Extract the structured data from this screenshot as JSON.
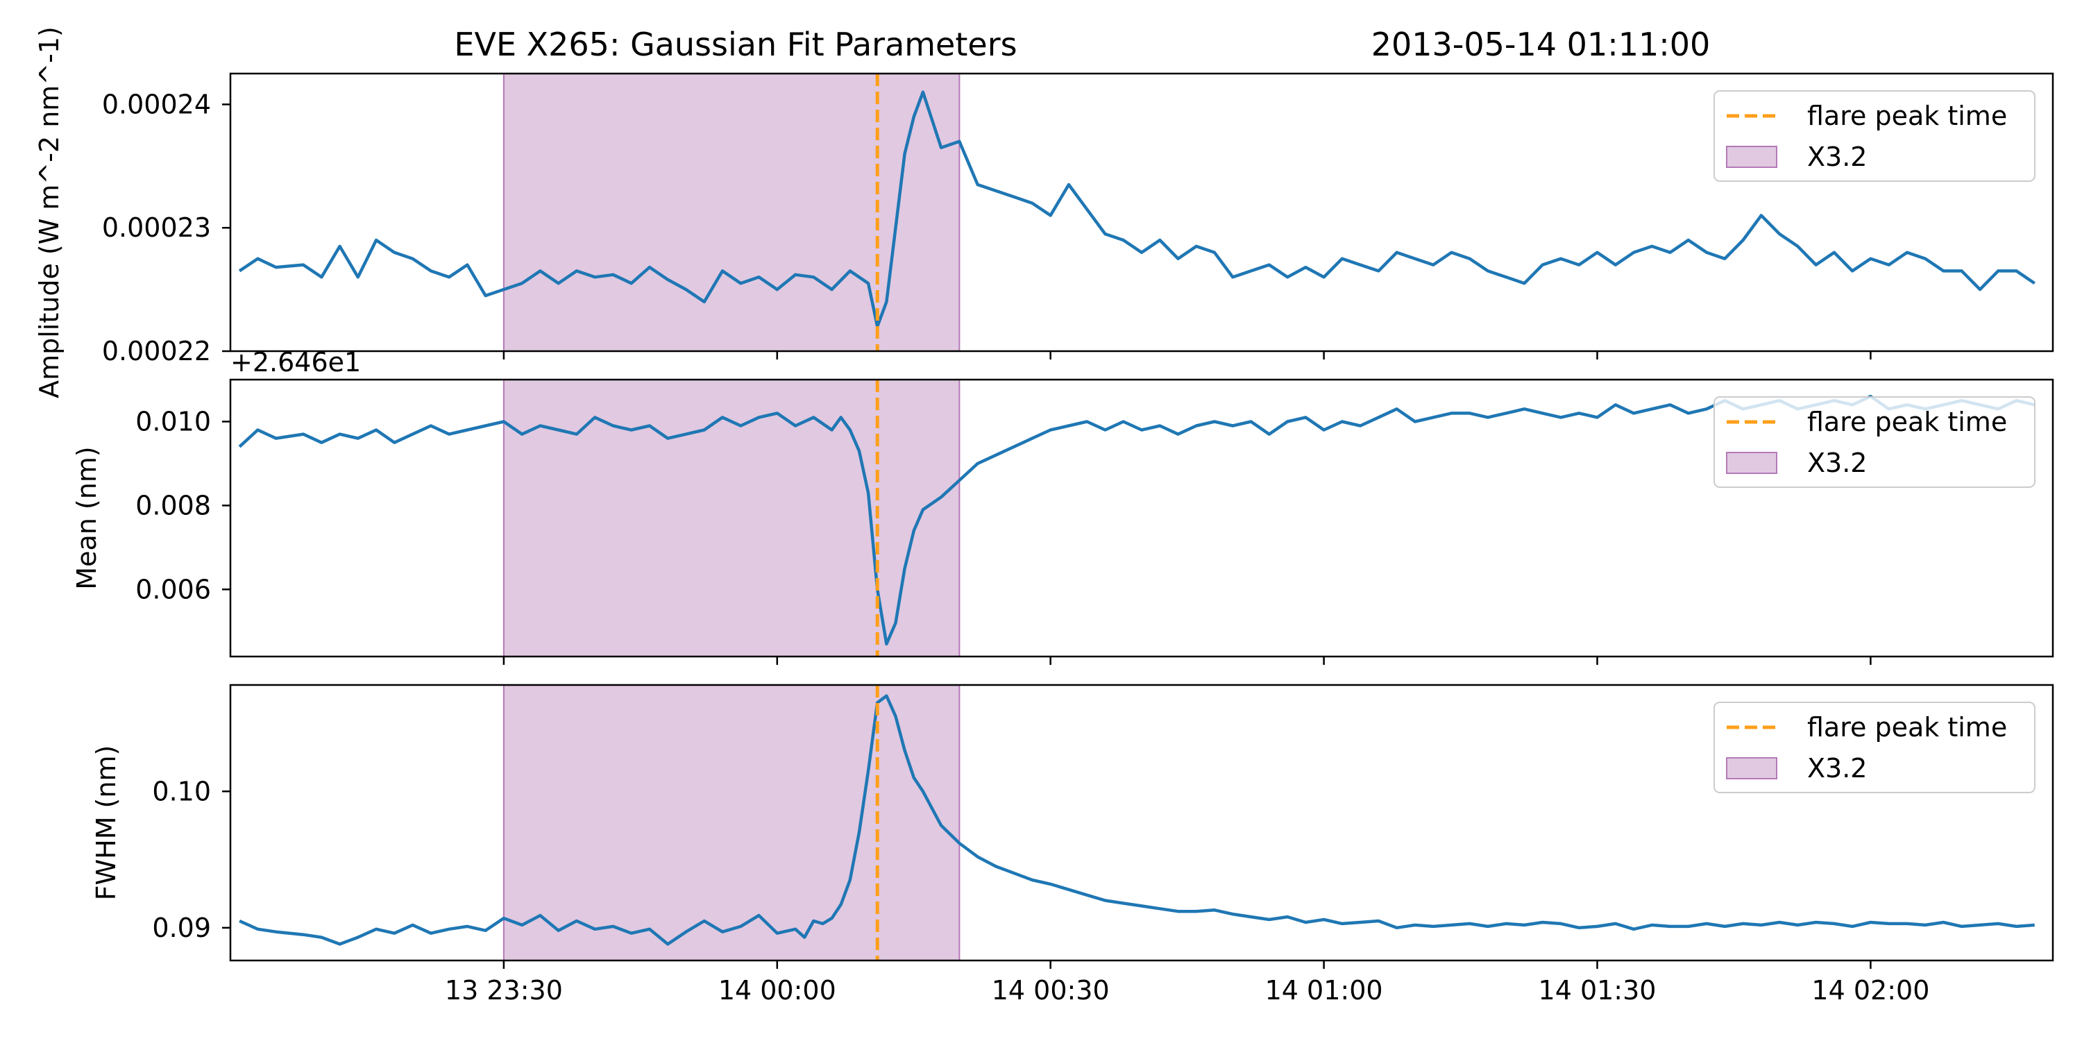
{
  "title": "EVE X265: Gaussian Fit Parameters",
  "subtitle": "2013-05-14 01:11:00",
  "legend": {
    "peak_label": "flare peak time",
    "span_label": "X3.2"
  },
  "colors": {
    "line": "#1f77b4",
    "peak": "#ff9f1a",
    "span_fill": "#c79cc9",
    "span_edge": "#b579b8"
  },
  "x_ticks": [
    "13 23:30",
    "14 00:00",
    "14 00:30",
    "14 01:00",
    "14 01:30",
    "14 02:00"
  ],
  "chart_data": [
    {
      "type": "line",
      "ylabel": "Amplitude (W m^-2 nm^-1)",
      "x_unit": "minutes since 2013-05-13 23:00",
      "xlim": [
        0,
        200
      ],
      "ylim": [
        0.00022,
        0.0002425
      ],
      "yticks": [
        0.00022,
        0.00023,
        0.00024
      ],
      "ytick_labels": [
        "0.00022",
        "0.00023",
        "0.00024"
      ],
      "peak_x": 71,
      "span": [
        30,
        80
      ],
      "x": [
        1,
        3,
        5,
        8,
        10,
        12,
        14,
        16,
        18,
        20,
        22,
        24,
        26,
        28,
        30,
        32,
        34,
        36,
        38,
        40,
        42,
        44,
        46,
        48,
        50,
        52,
        54,
        56,
        58,
        60,
        62,
        64,
        66,
        68,
        70,
        71,
        72,
        74,
        75,
        76,
        78,
        80,
        82,
        84,
        86,
        88,
        90,
        92,
        94,
        96,
        98,
        100,
        102,
        104,
        106,
        108,
        110,
        112,
        114,
        116,
        118,
        120,
        122,
        124,
        126,
        128,
        130,
        132,
        134,
        136,
        138,
        140,
        142,
        144,
        146,
        148,
        150,
        152,
        154,
        156,
        158,
        160,
        162,
        164,
        166,
        168,
        170,
        172,
        174,
        176,
        178,
        180,
        182,
        184,
        186,
        188,
        190,
        192,
        194,
        196,
        198
      ],
      "y": [
        0.0002265,
        0.0002275,
        0.0002268,
        0.000227,
        0.000226,
        0.0002285,
        0.000226,
        0.000229,
        0.000228,
        0.0002275,
        0.0002265,
        0.000226,
        0.000227,
        0.0002245,
        0.000225,
        0.0002255,
        0.0002265,
        0.0002255,
        0.0002265,
        0.000226,
        0.0002262,
        0.0002255,
        0.0002268,
        0.0002258,
        0.000225,
        0.000224,
        0.0002265,
        0.0002255,
        0.000226,
        0.000225,
        0.0002262,
        0.000226,
        0.000225,
        0.0002265,
        0.0002255,
        0.000222,
        0.000224,
        0.000236,
        0.000239,
        0.000241,
        0.0002365,
        0.000237,
        0.0002335,
        0.000233,
        0.0002325,
        0.000232,
        0.000231,
        0.0002335,
        0.0002315,
        0.0002295,
        0.000229,
        0.000228,
        0.000229,
        0.0002275,
        0.0002285,
        0.000228,
        0.000226,
        0.0002265,
        0.000227,
        0.000226,
        0.0002268,
        0.000226,
        0.0002275,
        0.000227,
        0.0002265,
        0.000228,
        0.0002275,
        0.000227,
        0.000228,
        0.0002275,
        0.0002265,
        0.000226,
        0.0002255,
        0.000227,
        0.0002275,
        0.000227,
        0.000228,
        0.000227,
        0.000228,
        0.0002285,
        0.000228,
        0.000229,
        0.000228,
        0.0002275,
        0.000229,
        0.000231,
        0.0002295,
        0.0002285,
        0.000227,
        0.000228,
        0.0002265,
        0.0002275,
        0.000227,
        0.000228,
        0.0002275,
        0.0002265,
        0.0002265,
        0.000225,
        0.0002265,
        0.0002265,
        0.0002255
      ]
    },
    {
      "type": "line",
      "ylabel": "Mean (nm)",
      "offset_label": "+2.646e1",
      "x_unit": "minutes since 2013-05-13 23:00",
      "xlim": [
        0,
        200
      ],
      "ylim": [
        0.0044,
        0.011
      ],
      "yticks": [
        0.006,
        0.008,
        0.01
      ],
      "ytick_labels": [
        "0.006",
        "0.008",
        "0.010"
      ],
      "peak_x": 71,
      "span": [
        30,
        80
      ],
      "x": [
        1,
        3,
        5,
        8,
        10,
        12,
        14,
        16,
        18,
        20,
        22,
        24,
        26,
        28,
        30,
        32,
        34,
        36,
        38,
        40,
        42,
        44,
        46,
        48,
        50,
        52,
        54,
        56,
        58,
        60,
        62,
        64,
        66,
        67,
        68,
        69,
        70,
        71,
        72,
        73,
        74,
        75,
        76,
        78,
        80,
        82,
        84,
        86,
        88,
        90,
        92,
        94,
        96,
        98,
        100,
        102,
        104,
        106,
        108,
        110,
        112,
        114,
        116,
        118,
        120,
        122,
        124,
        126,
        128,
        130,
        132,
        134,
        136,
        138,
        140,
        142,
        144,
        146,
        148,
        150,
        152,
        154,
        156,
        158,
        160,
        162,
        164,
        166,
        168,
        170,
        172,
        174,
        176,
        178,
        180,
        182,
        184,
        186,
        188,
        190,
        192,
        194,
        196,
        198
      ],
      "y": [
        0.0094,
        0.0098,
        0.0096,
        0.0097,
        0.0095,
        0.0097,
        0.0096,
        0.0098,
        0.0095,
        0.0097,
        0.0099,
        0.0097,
        0.0098,
        0.0099,
        0.01,
        0.0097,
        0.0099,
        0.0098,
        0.0097,
        0.0101,
        0.0099,
        0.0098,
        0.0099,
        0.0096,
        0.0097,
        0.0098,
        0.0101,
        0.0099,
        0.0101,
        0.0102,
        0.0099,
        0.0101,
        0.0098,
        0.0101,
        0.0098,
        0.0093,
        0.0083,
        0.006,
        0.0047,
        0.0052,
        0.0065,
        0.0074,
        0.0079,
        0.0082,
        0.0086,
        0.009,
        0.0092,
        0.0094,
        0.0096,
        0.0098,
        0.0099,
        0.01,
        0.0098,
        0.01,
        0.0098,
        0.0099,
        0.0097,
        0.0099,
        0.01,
        0.0099,
        0.01,
        0.0097,
        0.01,
        0.0101,
        0.0098,
        0.01,
        0.0099,
        0.0101,
        0.0103,
        0.01,
        0.0101,
        0.0102,
        0.0102,
        0.0101,
        0.0102,
        0.0103,
        0.0102,
        0.0101,
        0.0102,
        0.0101,
        0.0104,
        0.0102,
        0.0103,
        0.0104,
        0.0102,
        0.0103,
        0.0105,
        0.0103,
        0.0104,
        0.0105,
        0.0103,
        0.0104,
        0.0105,
        0.0104,
        0.0106,
        0.0103,
        0.0104,
        0.0103,
        0.0104,
        0.0105,
        0.0104,
        0.0103,
        0.0105,
        0.0104
      ]
    },
    {
      "type": "line",
      "ylabel": "FWHM (nm)",
      "x_unit": "minutes since 2013-05-13 23:00",
      "xlim": [
        0,
        200
      ],
      "ylim": [
        0.0876,
        0.1078
      ],
      "yticks": [
        0.09,
        0.1
      ],
      "ytick_labels": [
        "0.09",
        "0.10"
      ],
      "peak_x": 71,
      "span": [
        30,
        80
      ],
      "x": [
        1,
        3,
        5,
        8,
        10,
        12,
        14,
        16,
        18,
        20,
        22,
        24,
        26,
        28,
        30,
        32,
        34,
        36,
        38,
        40,
        42,
        44,
        46,
        48,
        50,
        52,
        54,
        56,
        58,
        60,
        62,
        63,
        64,
        65,
        66,
        67,
        68,
        69,
        70,
        71,
        72,
        73,
        74,
        75,
        76,
        78,
        80,
        82,
        84,
        86,
        88,
        90,
        92,
        94,
        96,
        98,
        100,
        102,
        104,
        106,
        108,
        110,
        112,
        114,
        116,
        118,
        120,
        122,
        124,
        126,
        128,
        130,
        132,
        134,
        136,
        138,
        140,
        142,
        144,
        146,
        148,
        150,
        152,
        154,
        156,
        158,
        160,
        162,
        164,
        166,
        168,
        170,
        172,
        174,
        176,
        178,
        180,
        182,
        184,
        186,
        188,
        190,
        192,
        194,
        196,
        198
      ],
      "y": [
        0.0905,
        0.0899,
        0.0897,
        0.0895,
        0.0893,
        0.0888,
        0.0893,
        0.0899,
        0.0896,
        0.0902,
        0.0896,
        0.0899,
        0.0901,
        0.0898,
        0.0907,
        0.0902,
        0.0909,
        0.0898,
        0.0905,
        0.0899,
        0.0901,
        0.0896,
        0.0899,
        0.0888,
        0.0897,
        0.0905,
        0.0897,
        0.0901,
        0.0909,
        0.0896,
        0.0899,
        0.0893,
        0.0905,
        0.0903,
        0.0907,
        0.0917,
        0.0935,
        0.097,
        0.1015,
        0.1065,
        0.107,
        0.1055,
        0.103,
        0.101,
        0.1,
        0.0975,
        0.0962,
        0.0952,
        0.0945,
        0.094,
        0.0935,
        0.0932,
        0.0928,
        0.0924,
        0.092,
        0.0918,
        0.0916,
        0.0914,
        0.0912,
        0.0912,
        0.0913,
        0.091,
        0.0908,
        0.0906,
        0.0908,
        0.0904,
        0.0906,
        0.0903,
        0.0904,
        0.0905,
        0.09,
        0.0902,
        0.0901,
        0.0902,
        0.0903,
        0.0901,
        0.0903,
        0.0902,
        0.0904,
        0.0903,
        0.09,
        0.0901,
        0.0903,
        0.0899,
        0.0902,
        0.0901,
        0.0901,
        0.0903,
        0.0901,
        0.0903,
        0.0902,
        0.0904,
        0.0902,
        0.0904,
        0.0903,
        0.0901,
        0.0904,
        0.0903,
        0.0903,
        0.0902,
        0.0904,
        0.0901,
        0.0902,
        0.0903,
        0.0901,
        0.0902
      ]
    }
  ]
}
